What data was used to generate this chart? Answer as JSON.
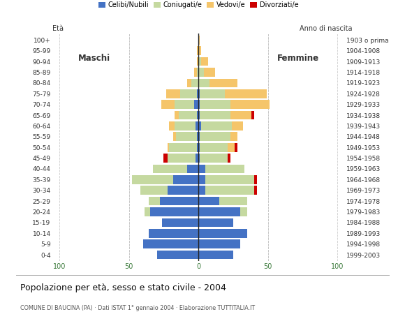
{
  "age_groups_top_to_bottom": [
    "100+",
    "95-99",
    "90-94",
    "85-89",
    "80-84",
    "75-79",
    "70-74",
    "65-69",
    "60-64",
    "55-59",
    "50-54",
    "45-49",
    "40-44",
    "35-39",
    "30-34",
    "25-29",
    "20-24",
    "15-19",
    "10-14",
    "5-9",
    "0-4"
  ],
  "birth_years_top_to_bottom": [
    "1903 o prima",
    "1904-1908",
    "1909-1913",
    "1914-1918",
    "1919-1923",
    "1924-1928",
    "1929-1933",
    "1934-1938",
    "1939-1943",
    "1944-1948",
    "1949-1953",
    "1954-1958",
    "1959-1963",
    "1964-1968",
    "1969-1973",
    "1974-1978",
    "1979-1983",
    "1984-1988",
    "1989-1993",
    "1994-1998",
    "1999-2003"
  ],
  "colors": {
    "celibe": "#4472c4",
    "coniugato": "#c5d9a0",
    "vedovo": "#f5c56a",
    "divorziato": "#cc0000"
  },
  "maschi_bottom_to_top": {
    "celibe": [
      30,
      40,
      36,
      26,
      35,
      28,
      22,
      18,
      8,
      2,
      1,
      1,
      2,
      1,
      3,
      1,
      0,
      0,
      0,
      0,
      0
    ],
    "coniugato": [
      0,
      0,
      0,
      0,
      4,
      8,
      20,
      30,
      25,
      20,
      20,
      15,
      15,
      13,
      14,
      12,
      5,
      1,
      0,
      0,
      0
    ],
    "vedovo": [
      0,
      0,
      0,
      0,
      0,
      0,
      0,
      0,
      0,
      0,
      1,
      2,
      4,
      3,
      10,
      10,
      3,
      2,
      1,
      1,
      0
    ],
    "divorziato": [
      0,
      0,
      0,
      0,
      0,
      0,
      0,
      0,
      0,
      3,
      0,
      0,
      0,
      0,
      0,
      0,
      0,
      0,
      0,
      0,
      0
    ]
  },
  "femmine_bottom_to_top": {
    "celibe": [
      25,
      30,
      35,
      25,
      30,
      15,
      5,
      5,
      5,
      1,
      1,
      1,
      2,
      1,
      1,
      1,
      0,
      0,
      0,
      0,
      0
    ],
    "coniugato": [
      0,
      0,
      0,
      0,
      5,
      20,
      35,
      35,
      28,
      20,
      20,
      22,
      22,
      22,
      22,
      18,
      8,
      4,
      2,
      0,
      0
    ],
    "vedovo": [
      0,
      0,
      0,
      0,
      0,
      0,
      0,
      0,
      0,
      0,
      5,
      5,
      8,
      15,
      28,
      30,
      20,
      8,
      5,
      2,
      1
    ],
    "divorziato": [
      0,
      0,
      0,
      0,
      0,
      0,
      2,
      2,
      0,
      2,
      2,
      0,
      0,
      2,
      0,
      0,
      0,
      0,
      0,
      0,
      0
    ]
  },
  "title": "Popolazione per età, sesso e stato civile - 2004",
  "subtitle": "COMUNE DI BAUCINA (PA) · Dati ISTAT 1° gennaio 2004 · Elaborazione TUTTITALIA.IT",
  "label_age": "Età",
  "label_birth": "Anno di nascita",
  "label_maschi": "Maschi",
  "label_femmine": "Femmine",
  "legend_labels": [
    "Celibi/Nubili",
    "Coniugati/e",
    "Vedovi/e",
    "Divorziati/e"
  ],
  "xlim": 100
}
